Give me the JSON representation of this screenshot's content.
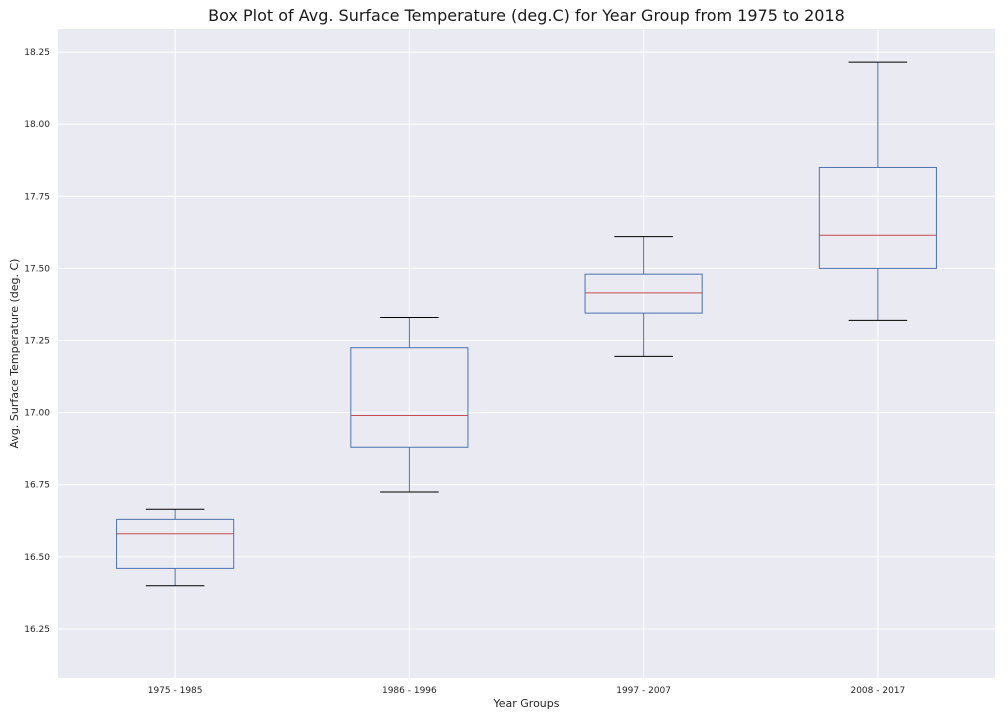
{
  "chart_data": {
    "type": "box",
    "title": "Box Plot of Avg. Surface Temperature (deg.C) for Year Group from 1975 to 2018",
    "xlabel": "Year Groups",
    "ylabel": "Avg. Surface Temperature (deg. C)",
    "ylim": [
      16.08,
      18.33
    ],
    "yticks": [
      "16.25",
      "16.50",
      "16.75",
      "17.00",
      "17.25",
      "17.50",
      "17.75",
      "18.00",
      "18.25"
    ],
    "categories": [
      "1975 - 1985",
      "1986 - 1996",
      "1997 - 2007",
      "2008 - 2017"
    ],
    "boxes": [
      {
        "whisker_low": 16.4,
        "q1": 16.46,
        "median": 16.58,
        "q3": 16.63,
        "whisker_high": 16.665
      },
      {
        "whisker_low": 16.725,
        "q1": 16.88,
        "median": 16.99,
        "q3": 17.225,
        "whisker_high": 17.33
      },
      {
        "whisker_low": 17.195,
        "q1": 17.345,
        "median": 17.415,
        "q3": 17.48,
        "whisker_high": 17.61
      },
      {
        "whisker_low": 17.32,
        "q1": 17.5,
        "median": 17.615,
        "q3": 17.85,
        "whisker_high": 18.215
      }
    ],
    "grid": true,
    "colors": {
      "background": "#EAEAF2",
      "grid": "#FFFFFF",
      "box": "#4C72B0",
      "median": "#C44E52",
      "whisker_cap": "#000000"
    }
  }
}
